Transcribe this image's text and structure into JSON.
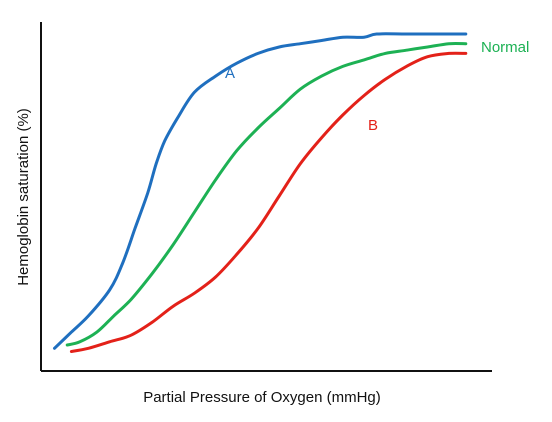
{
  "chart_data": {
    "type": "line",
    "title": "",
    "xlabel": "Partial Pressure of Oxygen (mmHg)",
    "ylabel": "Hemoglobin saturation (%)",
    "xlim": [
      0,
      100
    ],
    "ylim": [
      0,
      100
    ],
    "grid": false,
    "legend": "none",
    "series": [
      {
        "name": "A",
        "color": "#1f6fbf",
        "x": [
          2,
          6,
          10,
          15,
          18,
          21,
          24,
          26,
          28,
          31,
          35,
          40,
          45,
          50,
          55,
          60,
          65,
          70,
          75,
          78,
          85,
          92,
          99
        ],
        "y": [
          3,
          8,
          13,
          21,
          29,
          40,
          51,
          60,
          67,
          74,
          82,
          87,
          91,
          94,
          96,
          97,
          98,
          99,
          99,
          100,
          100,
          100,
          100
        ]
      },
      {
        "name": "Normal",
        "color": "#1db154",
        "x": [
          5,
          8,
          12,
          16,
          20,
          25,
          30,
          35,
          40,
          45,
          50,
          55,
          60,
          65,
          70,
          75,
          80,
          85,
          90,
          95,
          99
        ],
        "y": [
          4,
          5,
          8,
          13,
          18,
          26,
          35,
          45,
          55,
          64,
          71,
          77,
          83,
          87,
          90,
          92,
          94,
          95,
          96,
          97,
          97
        ]
      },
      {
        "name": "B",
        "color": "#e32119",
        "x": [
          6,
          10,
          15,
          20,
          25,
          30,
          35,
          40,
          45,
          50,
          55,
          60,
          65,
          70,
          75,
          80,
          85,
          90,
          95,
          99
        ],
        "y": [
          2,
          3,
          5,
          7,
          11,
          16,
          20,
          25,
          32,
          40,
          50,
          60,
          68,
          75,
          81,
          86,
          90,
          93,
          94,
          94
        ]
      }
    ],
    "annotations": [
      {
        "text": "A",
        "series": "A"
      },
      {
        "text": "Normal",
        "series": "Normal"
      },
      {
        "text": "B",
        "series": "B"
      }
    ]
  }
}
